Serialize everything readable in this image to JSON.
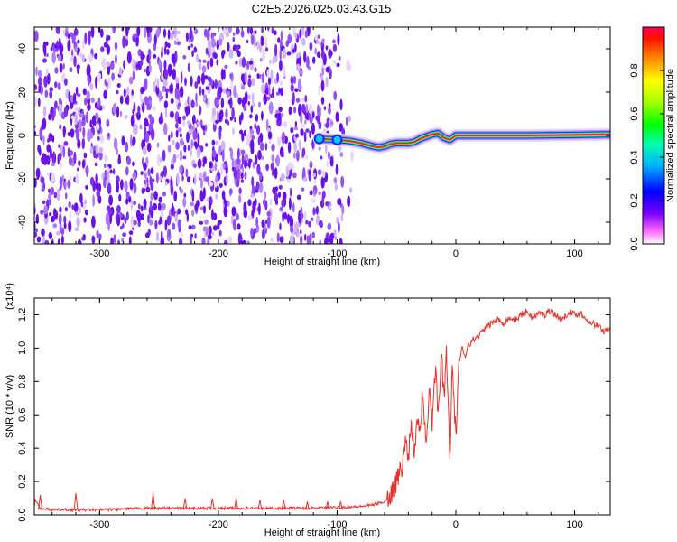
{
  "title": "C2E5.2026.025.03.43.G15",
  "colors": {
    "snr_line": "#e8302a",
    "spectrogram_noise": "#7b22e8",
    "trace_core": "#ff2020",
    "colormap": [
      "#ffffff",
      "#ff00ff",
      "#6a00ff",
      "#0000ff",
      "#00c8ff",
      "#00ff80",
      "#80ff00",
      "#ffff00",
      "#ff8000",
      "#ff0000"
    ]
  },
  "chart_data": [
    {
      "id": "spectrogram",
      "type": "heatmap",
      "xlabel": "Height of straight line (km)",
      "ylabel": "Frequency (Hz)",
      "xlim": [
        -355,
        130
      ],
      "ylim": [
        -50,
        50
      ],
      "xticks": [
        -300,
        -200,
        -100,
        0,
        100
      ],
      "yticks": [
        -40,
        -20,
        0,
        20,
        40
      ],
      "noise_region_x": [
        -355,
        -85
      ],
      "trace": {
        "x": [
          -115,
          -100,
          -90,
          -80,
          -70,
          -65,
          -60,
          -55,
          -50,
          -45,
          -40,
          -35,
          -30,
          -25,
          -20,
          -15,
          -10,
          -5,
          0,
          10,
          30,
          60,
          90,
          130
        ],
        "y": [
          -1.5,
          -2,
          -2.5,
          -3.5,
          -5,
          -5.5,
          -5,
          -4,
          -3.5,
          -3.5,
          -3.5,
          -3,
          -1.5,
          -0.5,
          0.5,
          1,
          -1,
          -2,
          0,
          0,
          0,
          0,
          0.2,
          0.5
        ]
      },
      "colorbar": {
        "label": "Normalized spectral amplitude",
        "range": [
          0,
          1
        ],
        "ticks": [
          "0.0",
          "0.2",
          "0.4",
          "0.6",
          "0.8"
        ]
      }
    },
    {
      "id": "snr",
      "type": "line",
      "xlabel": "Height of straight line (km)",
      "ylabel": "SNR (10 * v/v)",
      "multiplier": "(x10⁴)",
      "xlim": [
        -355,
        130
      ],
      "ylim": [
        0,
        1.3
      ],
      "xticks": [
        -300,
        -200,
        -100,
        0,
        100
      ],
      "yticks": [
        0.0,
        0.2,
        0.4,
        0.6,
        0.8,
        1.0,
        1.2
      ],
      "series": [
        {
          "name": "SNR",
          "x": [
            -355,
            -350,
            -340,
            -320,
            -300,
            -280,
            -260,
            -250,
            -240,
            -220,
            -200,
            -180,
            -160,
            -140,
            -120,
            -100,
            -80,
            -70,
            -60,
            -55,
            -50,
            -45,
            -42,
            -40,
            -38,
            -35,
            -32,
            -30,
            -28,
            -25,
            -22,
            -20,
            -17,
            -15,
            -12,
            -10,
            -8,
            -5,
            -3,
            0,
            2,
            5,
            8,
            10,
            15,
            20,
            25,
            30,
            35,
            40,
            45,
            50,
            55,
            60,
            65,
            70,
            75,
            80,
            85,
            90,
            95,
            100,
            105,
            110,
            115,
            120,
            125,
            130
          ],
          "y": [
            0.1,
            0.04,
            0.03,
            0.03,
            0.03,
            0.035,
            0.04,
            0.04,
            0.04,
            0.04,
            0.04,
            0.04,
            0.04,
            0.04,
            0.04,
            0.045,
            0.05,
            0.06,
            0.08,
            0.12,
            0.2,
            0.3,
            0.45,
            0.35,
            0.55,
            0.4,
            0.6,
            0.5,
            0.75,
            0.45,
            0.8,
            0.55,
            0.9,
            0.6,
            0.95,
            0.7,
            1.0,
            0.35,
            0.9,
            0.45,
            0.85,
            1.0,
            0.95,
            1.02,
            1.05,
            1.08,
            1.12,
            1.15,
            1.17,
            1.15,
            1.18,
            1.17,
            1.2,
            1.22,
            1.18,
            1.21,
            1.2,
            1.23,
            1.19,
            1.17,
            1.22,
            1.2,
            1.21,
            1.17,
            1.15,
            1.13,
            1.1,
            1.13
          ]
        }
      ],
      "spikes": {
        "x": [
          -350,
          -320,
          -255,
          -228,
          -205,
          -185,
          -165,
          -145,
          -125,
          -108,
          -97
        ],
        "y": [
          0.12,
          0.13,
          0.13,
          0.1,
          0.1,
          0.1,
          0.09,
          0.09,
          0.08,
          0.08,
          0.08
        ]
      }
    }
  ]
}
